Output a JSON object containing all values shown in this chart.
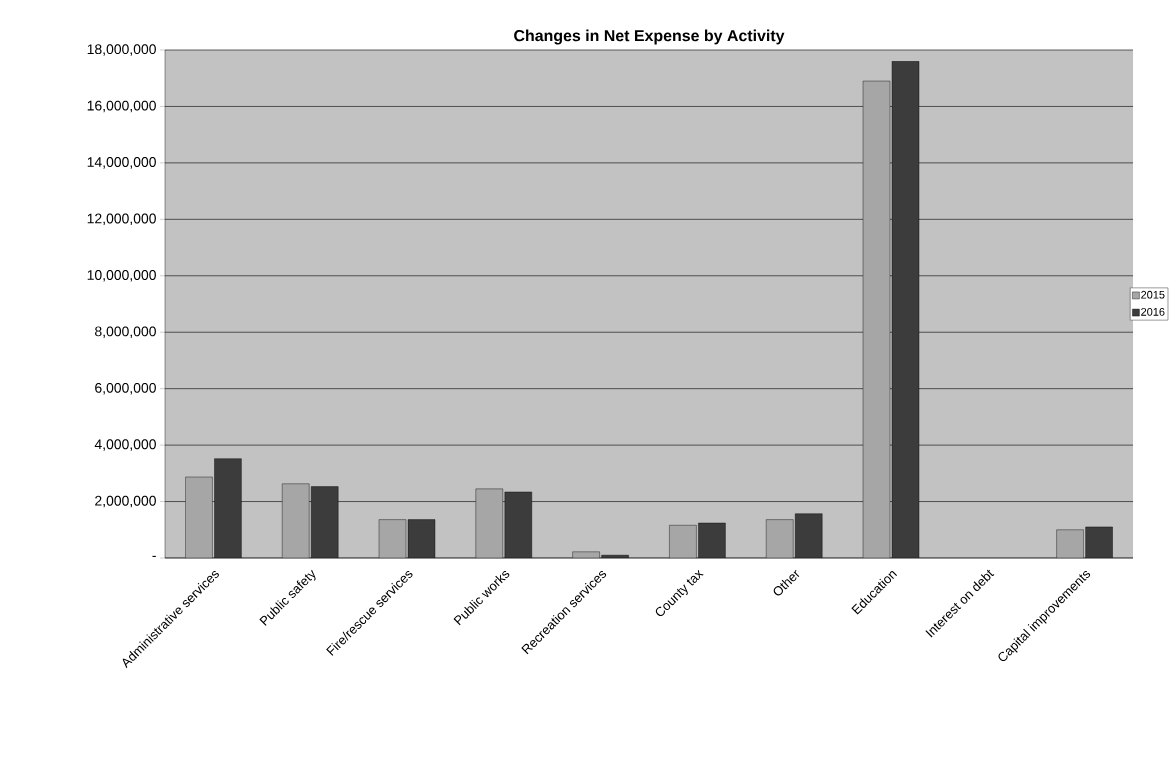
{
  "chart_data": {
    "type": "bar",
    "title": "Changes in Net Expense by Activity",
    "categories": [
      "Administrative services",
      "Public safety",
      "Fire/rescue services",
      "Public works",
      "Recreation services",
      "County tax",
      "Other",
      "Education",
      "Interest on debt",
      "Capital improvements"
    ],
    "series": [
      {
        "name": "2015",
        "color": "#a6a6a6",
        "values": [
          2870000,
          2630000,
          1360000,
          2450000,
          220000,
          1160000,
          1360000,
          16900000,
          null,
          1000000
        ]
      },
      {
        "name": "2016",
        "color": "#3c3c3c",
        "values": [
          3520000,
          2530000,
          1360000,
          2340000,
          100000,
          1240000,
          1570000,
          17600000,
          null,
          1100000
        ]
      }
    ],
    "ylim": [
      0,
      18000000
    ],
    "yticks": [
      {
        "value": 0,
        "label": "-"
      },
      {
        "value": 2000000,
        "label": "2,000,000"
      },
      {
        "value": 4000000,
        "label": "4,000,000"
      },
      {
        "value": 6000000,
        "label": "6,000,000"
      },
      {
        "value": 8000000,
        "label": "8,000,000"
      },
      {
        "value": 10000000,
        "label": "10,000,000"
      },
      {
        "value": 12000000,
        "label": "12,000,000"
      },
      {
        "value": 14000000,
        "label": "14,000,000"
      },
      {
        "value": 16000000,
        "label": "16,000,000"
      },
      {
        "value": 18000000,
        "label": "18,000,000"
      }
    ],
    "grid": "y",
    "legend": "right"
  }
}
